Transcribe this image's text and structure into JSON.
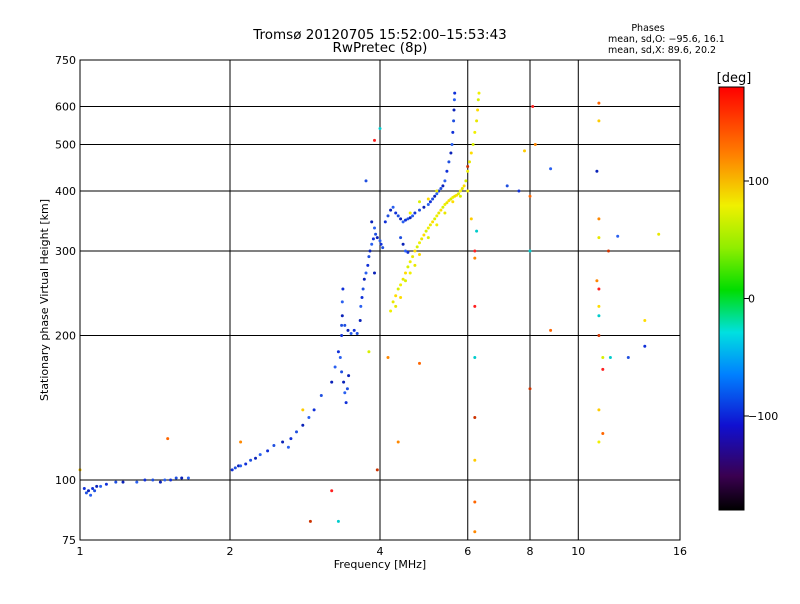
{
  "chart_data": {
    "type": "scatter",
    "title": "Tromsø 20120705 15:52:00–15:53:43",
    "subtitle": "RwPretec (8p)",
    "xlabel": "Frequency [MHz]",
    "ylabel": "Stationary phase Virtual Height [km]",
    "xscale": "log",
    "yscale": "log",
    "xlim": [
      1,
      16
    ],
    "ylim": [
      75,
      750
    ],
    "x_ticks": [
      1,
      2,
      4,
      6,
      8,
      10,
      16
    ],
    "x_tick_labels": [
      "1",
      "2",
      "4",
      "6",
      "8",
      "10",
      "16"
    ],
    "y_ticks": [
      75,
      100,
      200,
      300,
      400,
      500,
      600,
      750
    ],
    "y_tick_labels": [
      "75",
      "100",
      "200",
      "300",
      "400",
      "500",
      "600",
      "750"
    ],
    "grid": true,
    "phase_box": {
      "heading": "Phases",
      "line_o": "mean, sd,O: −95.6, 16.1",
      "line_x": "mean, sd,X:  89.6, 20.2"
    },
    "colorbar": {
      "label": "[deg]",
      "range": [
        -180,
        180
      ],
      "ticks": [
        -100,
        0,
        100
      ],
      "tick_labels": [
        "−100",
        "0",
        "100"
      ],
      "colormap": "rainbow"
    },
    "series": [
      {
        "mode": "O",
        "phase_mean": -95.6,
        "points": [
          [
            1.02,
            96
          ],
          [
            1.03,
            94
          ],
          [
            1.04,
            95
          ],
          [
            1.05,
            93
          ],
          [
            1.06,
            96
          ],
          [
            1.07,
            95
          ],
          [
            1.08,
            97
          ],
          [
            1.1,
            97
          ],
          [
            1.13,
            98
          ],
          [
            1.18,
            99
          ],
          [
            1.22,
            99
          ],
          [
            1.3,
            99
          ],
          [
            1.35,
            100
          ],
          [
            1.4,
            100
          ],
          [
            1.45,
            99
          ],
          [
            1.48,
            100
          ],
          [
            1.52,
            100
          ],
          [
            1.56,
            101
          ],
          [
            1.6,
            101
          ],
          [
            1.65,
            101
          ],
          [
            2.02,
            105
          ],
          [
            2.05,
            106
          ],
          [
            2.08,
            107
          ],
          [
            2.1,
            107
          ],
          [
            2.15,
            108
          ],
          [
            2.2,
            110
          ],
          [
            2.25,
            111
          ],
          [
            2.3,
            113
          ],
          [
            2.38,
            115
          ],
          [
            2.45,
            118
          ],
          [
            2.55,
            120
          ],
          [
            2.62,
            117
          ],
          [
            2.65,
            122
          ],
          [
            2.72,
            126
          ],
          [
            2.8,
            130
          ],
          [
            2.88,
            135
          ],
          [
            2.95,
            140
          ],
          [
            3.05,
            150
          ],
          [
            3.2,
            160
          ],
          [
            3.25,
            172
          ],
          [
            3.3,
            185
          ],
          [
            3.35,
            168
          ],
          [
            3.38,
            160
          ],
          [
            3.4,
            152
          ],
          [
            3.42,
            145
          ],
          [
            3.44,
            155
          ],
          [
            3.46,
            165
          ],
          [
            3.33,
            180
          ],
          [
            3.35,
            200
          ],
          [
            3.35,
            210
          ],
          [
            3.36,
            220
          ],
          [
            3.36,
            235
          ],
          [
            3.37,
            250
          ],
          [
            3.4,
            210
          ],
          [
            3.45,
            205
          ],
          [
            3.5,
            202
          ],
          [
            3.55,
            205
          ],
          [
            3.6,
            202
          ],
          [
            3.65,
            215
          ],
          [
            3.66,
            230
          ],
          [
            3.68,
            240
          ],
          [
            3.7,
            250
          ],
          [
            3.72,
            262
          ],
          [
            3.75,
            270
          ],
          [
            3.78,
            280
          ],
          [
            3.8,
            292
          ],
          [
            3.82,
            300
          ],
          [
            3.85,
            310
          ],
          [
            3.88,
            318
          ],
          [
            3.92,
            325
          ],
          [
            3.95,
            320
          ],
          [
            4.0,
            315
          ],
          [
            4.02,
            310
          ],
          [
            4.05,
            305
          ],
          [
            3.85,
            345
          ],
          [
            3.9,
            335
          ],
          [
            4.1,
            345
          ],
          [
            4.15,
            355
          ],
          [
            4.2,
            365
          ],
          [
            4.25,
            370
          ],
          [
            4.3,
            360
          ],
          [
            4.35,
            355
          ],
          [
            4.4,
            350
          ],
          [
            4.45,
            345
          ],
          [
            4.5,
            348
          ],
          [
            4.55,
            350
          ],
          [
            4.6,
            352
          ],
          [
            4.65,
            355
          ],
          [
            4.7,
            360
          ],
          [
            4.8,
            365
          ],
          [
            4.9,
            370
          ],
          [
            5.0,
            375
          ],
          [
            5.05,
            380
          ],
          [
            5.1,
            385
          ],
          [
            5.15,
            390
          ],
          [
            5.2,
            395
          ],
          [
            5.25,
            400
          ],
          [
            5.3,
            405
          ],
          [
            5.35,
            410
          ],
          [
            5.4,
            420
          ],
          [
            5.45,
            440
          ],
          [
            5.5,
            460
          ],
          [
            5.55,
            480
          ],
          [
            5.58,
            500
          ],
          [
            5.6,
            530
          ],
          [
            5.62,
            560
          ],
          [
            5.63,
            590
          ],
          [
            5.64,
            620
          ],
          [
            5.65,
            640
          ],
          [
            4.4,
            320
          ],
          [
            4.45,
            310
          ],
          [
            4.5,
            300
          ],
          [
            4.55,
            298
          ],
          [
            3.75,
            420
          ],
          [
            3.9,
            270
          ],
          [
            8.8,
            445
          ],
          [
            7.6,
            400
          ],
          [
            7.2,
            410
          ],
          [
            10.9,
            440
          ],
          [
            12.0,
            322
          ],
          [
            13.6,
            190
          ],
          [
            12.6,
            180
          ]
        ]
      },
      {
        "mode": "X",
        "phase_mean": 89.6,
        "points": [
          [
            4.2,
            225
          ],
          [
            4.25,
            235
          ],
          [
            4.3,
            242
          ],
          [
            4.35,
            250
          ],
          [
            4.4,
            255
          ],
          [
            4.45,
            262
          ],
          [
            4.5,
            270
          ],
          [
            4.55,
            278
          ],
          [
            4.6,
            285
          ],
          [
            4.65,
            292
          ],
          [
            4.7,
            300
          ],
          [
            4.75,
            306
          ],
          [
            4.8,
            312
          ],
          [
            4.85,
            318
          ],
          [
            4.9,
            324
          ],
          [
            4.95,
            330
          ],
          [
            5.0,
            335
          ],
          [
            5.05,
            340
          ],
          [
            5.1,
            345
          ],
          [
            5.15,
            350
          ],
          [
            5.2,
            355
          ],
          [
            5.25,
            360
          ],
          [
            5.3,
            365
          ],
          [
            5.35,
            370
          ],
          [
            5.4,
            375
          ],
          [
            5.45,
            378
          ],
          [
            5.5,
            382
          ],
          [
            5.55,
            385
          ],
          [
            5.6,
            388
          ],
          [
            5.65,
            390
          ],
          [
            5.7,
            392
          ],
          [
            5.75,
            395
          ],
          [
            5.8,
            400
          ],
          [
            5.85,
            405
          ],
          [
            5.9,
            410
          ],
          [
            5.95,
            420
          ],
          [
            6.0,
            440
          ],
          [
            6.05,
            460
          ],
          [
            6.1,
            480
          ],
          [
            6.15,
            500
          ],
          [
            6.2,
            530
          ],
          [
            6.25,
            560
          ],
          [
            6.28,
            590
          ],
          [
            6.3,
            620
          ],
          [
            6.32,
            640
          ],
          [
            4.3,
            230
          ],
          [
            4.4,
            240
          ],
          [
            4.5,
            260
          ],
          [
            4.6,
            270
          ],
          [
            4.7,
            280
          ],
          [
            4.8,
            295
          ],
          [
            5.0,
            320
          ],
          [
            5.2,
            340
          ],
          [
            5.4,
            360
          ],
          [
            5.6,
            380
          ],
          [
            5.8,
            390
          ],
          [
            6.0,
            400
          ],
          [
            5.2,
            400
          ],
          [
            5.0,
            385
          ],
          [
            4.8,
            380
          ],
          [
            4.6,
            360
          ],
          [
            11.0,
            320
          ],
          [
            11.0,
            230
          ],
          [
            11.2,
            180
          ],
          [
            11.0,
            120
          ],
          [
            14.5,
            325
          ],
          [
            13.6,
            215
          ],
          [
            3.8,
            185
          ]
        ]
      },
      {
        "mode": "other",
        "phase_mean": null,
        "points": [
          [
            6.2,
            290
          ],
          [
            6.2,
            230
          ],
          [
            6.2,
            180
          ],
          [
            6.2,
            135
          ],
          [
            6.2,
            110
          ],
          [
            6.2,
            90
          ],
          [
            6.2,
            78
          ],
          [
            6.2,
            300
          ],
          [
            6.25,
            330
          ],
          [
            6.0,
            450
          ],
          [
            6.1,
            350
          ],
          [
            8.0,
            390
          ],
          [
            8.2,
            500
          ],
          [
            8.1,
            600
          ],
          [
            8.0,
            300
          ],
          [
            8.0,
            155
          ],
          [
            7.8,
            485
          ],
          [
            11.0,
            610
          ],
          [
            11.0,
            350
          ],
          [
            11.0,
            250
          ],
          [
            11.0,
            220
          ],
          [
            11.0,
            200
          ],
          [
            11.0,
            140
          ],
          [
            11.2,
            125
          ],
          [
            10.9,
            260
          ],
          [
            11.2,
            170
          ],
          [
            11.6,
            180
          ],
          [
            11.5,
            300
          ],
          [
            11.0,
            560
          ],
          [
            8.8,
            205
          ],
          [
            4.35,
            120
          ],
          [
            3.2,
            95
          ],
          [
            3.3,
            82
          ],
          [
            3.95,
            105
          ],
          [
            2.8,
            140
          ],
          [
            1.5,
            122
          ],
          [
            2.1,
            120
          ],
          [
            3.9,
            510
          ],
          [
            4.0,
            540
          ],
          [
            2.9,
            82
          ],
          [
            1.0,
            105
          ],
          [
            4.8,
            175
          ],
          [
            4.15,
            180
          ]
        ]
      }
    ]
  }
}
